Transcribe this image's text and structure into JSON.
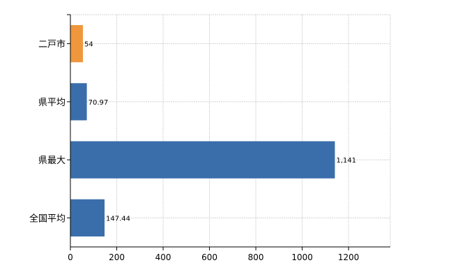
{
  "chart_data": {
    "type": "bar",
    "orientation": "horizontal",
    "categories": [
      "二戸市",
      "県平均",
      "県最大",
      "全国平均"
    ],
    "values": [
      54,
      70.97,
      1141,
      147.44
    ],
    "value_labels": [
      "54",
      "70.97",
      "1,141",
      "147.44"
    ],
    "colors": [
      "#f0963c",
      "#3a6eab",
      "#3a6eab",
      "#3a6eab"
    ],
    "xlim": [
      0,
      1380
    ],
    "xticks": [
      0,
      200,
      400,
      600,
      800,
      1000,
      1200
    ],
    "grid": true,
    "title": "",
    "xlabel": "",
    "ylabel": ""
  }
}
